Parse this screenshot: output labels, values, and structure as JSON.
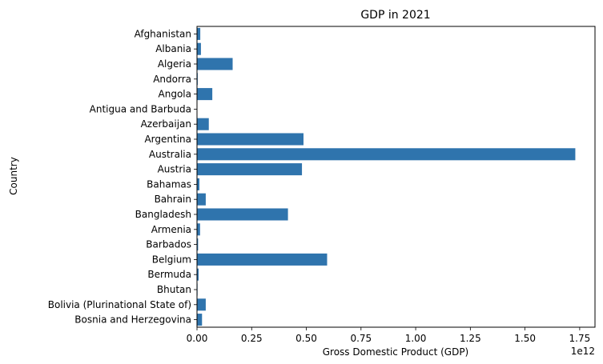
{
  "chart_data": {
    "type": "bar",
    "orientation": "horizontal",
    "title": "GDP in 2021",
    "xlabel": "Gross Domestic Product (GDP)",
    "ylabel": "Country",
    "x_scale_label": "1e12",
    "x_scale": 1000000000000.0,
    "xlim": [
      0,
      1820000000000.0
    ],
    "x_ticks": [
      0,
      250000000000.0,
      500000000000.0,
      750000000000.0,
      1000000000000.0,
      1250000000000.0,
      1500000000000.0,
      1750000000000.0
    ],
    "x_tick_labels": [
      "0.00",
      "0.25",
      "0.50",
      "0.75",
      "1.00",
      "1.25",
      "1.50",
      "1.75"
    ],
    "grid": false,
    "bar_color": "#2f74ad",
    "categories": [
      "Afghanistan",
      "Albania",
      "Algeria",
      "Andorra",
      "Angola",
      "Antigua and Barbuda",
      "Azerbaijan",
      "Argentina",
      "Australia",
      "Austria",
      "Bahamas",
      "Bahrain",
      "Bangladesh",
      "Armenia",
      "Barbados",
      "Belgium",
      "Bermuda",
      "Bhutan",
      "Bolivia (Plurinational State of)",
      "Bosnia and Herzegovina"
    ],
    "values": [
      15000000000.0,
      18000000000.0,
      163000000000.0,
      3300000000.0,
      70000000000.0,
      1500000000.0,
      54000000000.0,
      487000000000.0,
      1730000000000.0,
      480000000000.0,
      11000000000.0,
      40000000000.0,
      416000000000.0,
      14000000000.0,
      5000000000.0,
      595000000000.0,
      7300000000.0,
      2500000000.0,
      40000000000.0,
      23000000000.0
    ]
  }
}
